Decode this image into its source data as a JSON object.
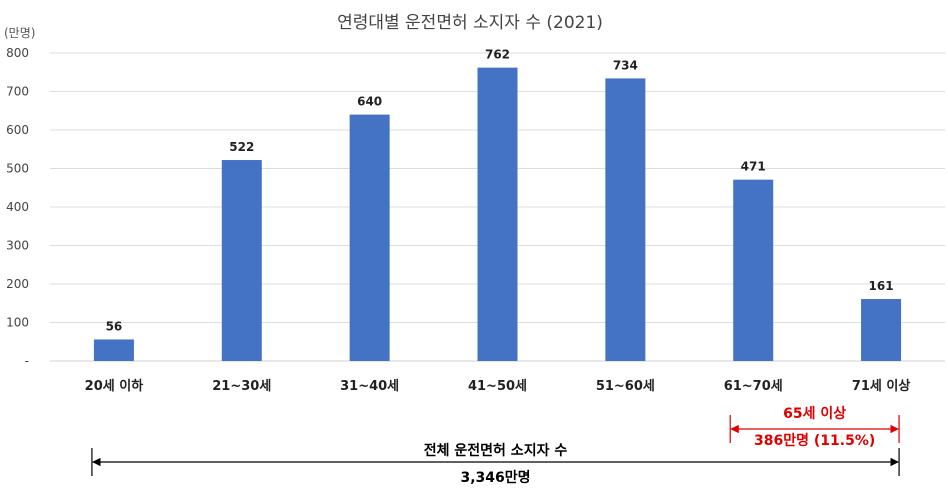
{
  "chart_data": {
    "type": "bar",
    "title": "연령대별 운전면허 소지자 수 (2021)",
    "ylabel": "(만명)",
    "xlabel": "",
    "categories": [
      "20세 이하",
      "21~30세",
      "31~40세",
      "41~50세",
      "51~60세",
      "61~70세",
      "71세 이상"
    ],
    "values": [
      56,
      522,
      640,
      762,
      734,
      471,
      161
    ],
    "data_labels": [
      "56",
      "522",
      "640",
      "762",
      "734",
      "471",
      "161"
    ],
    "ylim": [
      0,
      800
    ],
    "yticks": [
      0,
      100,
      200,
      300,
      400,
      500,
      600,
      700,
      800
    ],
    "ytick_labels": [
      "-",
      "100",
      "200",
      "300",
      "400",
      "500",
      "600",
      "700",
      "800"
    ],
    "grid": true,
    "bar_color": "#4472C4",
    "annotations": {
      "senior": {
        "label_top": "65세 이상",
        "label_bottom": "386만명 (11.5%)",
        "color": "#E00000",
        "from_category": 5,
        "to_category": 6
      },
      "total": {
        "label_top": "전체 운전면허 소지자 수",
        "label_bottom": "3,346만명",
        "color": "#000000",
        "from_category": 0,
        "to_category": 6
      }
    }
  }
}
